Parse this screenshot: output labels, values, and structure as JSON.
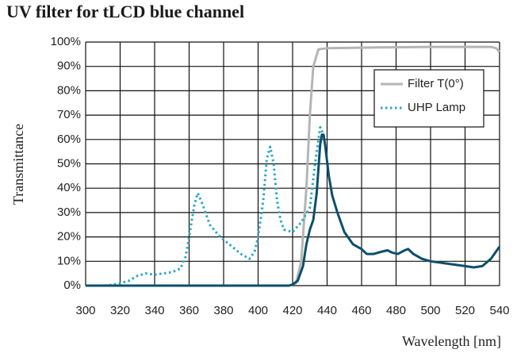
{
  "chart_data": {
    "type": "line",
    "title": "UV filter for tLCD blue channel",
    "x_label": "Wavelength [nm]",
    "y_label": "Transmittance",
    "xlim": [
      300,
      540
    ],
    "xticks": [
      300,
      320,
      340,
      360,
      380,
      400,
      420,
      440,
      460,
      480,
      500,
      520,
      540
    ],
    "ylim": [
      0,
      100
    ],
    "yticks": [
      {
        "value": 0,
        "label": "0%"
      },
      {
        "value": 10,
        "label": "10%"
      },
      {
        "value": 20,
        "label": "20%"
      },
      {
        "value": 30,
        "label": "30%"
      },
      {
        "value": 40,
        "label": "40%"
      },
      {
        "value": 50,
        "label": "50%"
      },
      {
        "value": 60,
        "label": "60%"
      },
      {
        "value": 70,
        "label": "70%"
      },
      {
        "value": 80,
        "label": "80%"
      },
      {
        "value": 90,
        "label": "90%"
      },
      {
        "value": 100,
        "label": "100%"
      }
    ],
    "grid": true,
    "legend": "upper right",
    "series": [
      {
        "name": "Filter T(0°)",
        "color": "#b5b5b5",
        "style": "solid",
        "x": [
          300,
          400,
          418,
          422,
          425,
          428,
          430,
          432,
          435,
          440,
          470,
          500,
          530,
          535,
          538,
          540
        ],
        "values": [
          0,
          0,
          0,
          1,
          10,
          40,
          70,
          90,
          97,
          97.5,
          97.8,
          98,
          98,
          98,
          97.5,
          96
        ]
      },
      {
        "name": "UHP Lamp",
        "color": "#2aa7c0",
        "style": "dotted",
        "x": [
          300,
          310,
          315,
          320,
          325,
          330,
          335,
          340,
          345,
          350,
          355,
          358,
          360,
          363,
          365,
          368,
          372,
          378,
          385,
          390,
          395,
          398,
          400,
          403,
          405,
          407,
          409,
          411,
          413,
          415,
          420,
          425,
          430,
          433,
          436,
          438
        ],
        "values": [
          0,
          0,
          0.3,
          1,
          2,
          4,
          5,
          4.5,
          5,
          5.5,
          7,
          12,
          20,
          33,
          38,
          33,
          25,
          20,
          16,
          13,
          11,
          14,
          20,
          35,
          52,
          57,
          50,
          35,
          27,
          23,
          22,
          26,
          32,
          50,
          65,
          62
        ]
      },
      {
        "color": "#0b4f6c",
        "style": "solid",
        "x": [
          300,
          400,
          418,
          420,
          423,
          426,
          428,
          430,
          432,
          434,
          436,
          437,
          438,
          439,
          441,
          443,
          446,
          450,
          455,
          460,
          463,
          467,
          472,
          475,
          478,
          481,
          485,
          487,
          490,
          495,
          500,
          510,
          520,
          525,
          530,
          535,
          538,
          540
        ],
        "values": [
          0,
          0,
          0,
          0.5,
          2,
          8,
          17,
          23,
          27,
          38,
          58,
          62,
          62,
          57,
          45,
          37,
          30,
          22,
          17,
          15,
          13,
          13,
          14,
          14.5,
          13.5,
          13,
          14.5,
          15,
          13,
          11,
          10,
          9,
          8,
          7.5,
          8,
          11,
          14,
          16
        ]
      }
    ]
  }
}
